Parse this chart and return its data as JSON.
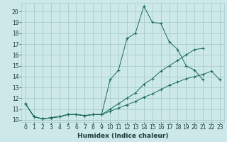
{
  "title": "",
  "xlabel": "Humidex (Indice chaleur)",
  "bg_color": "#cce8e8",
  "grid_color": "#aacccc",
  "line_color": "#1a6b5a",
  "xlim": [
    -0.5,
    23.5
  ],
  "ylim": [
    9.8,
    20.8
  ],
  "xticks": [
    0,
    1,
    2,
    3,
    4,
    5,
    6,
    7,
    8,
    9,
    10,
    11,
    12,
    13,
    14,
    15,
    16,
    17,
    18,
    19,
    20,
    21,
    22,
    23
  ],
  "yticks": [
    10,
    11,
    12,
    13,
    14,
    15,
    16,
    17,
    18,
    19,
    20
  ],
  "series": [
    {
      "x": [
        0,
        1,
        2,
        3,
        4,
        5,
        6,
        7,
        8,
        9,
        10,
        11,
        12,
        13,
        14,
        15,
        16,
        17,
        18,
        19,
        20,
        21
      ],
      "y": [
        11.5,
        10.3,
        10.1,
        10.2,
        10.3,
        10.5,
        10.5,
        10.4,
        10.5,
        10.5,
        13.7,
        14.6,
        17.5,
        18.0,
        20.5,
        19.0,
        18.9,
        17.2,
        16.5,
        15.0,
        14.6,
        13.7
      ]
    },
    {
      "x": [
        0,
        1,
        2,
        3,
        4,
        5,
        6,
        7,
        8,
        9,
        10,
        11,
        12,
        13,
        14,
        15,
        16,
        17,
        18,
        19,
        20,
        21
      ],
      "y": [
        11.5,
        10.3,
        10.1,
        10.2,
        10.3,
        10.5,
        10.5,
        10.4,
        10.5,
        10.5,
        11.0,
        11.5,
        12.0,
        12.5,
        13.3,
        13.8,
        14.5,
        15.0,
        15.5,
        16.0,
        16.5,
        16.6
      ]
    },
    {
      "x": [
        0,
        1,
        2,
        3,
        4,
        5,
        6,
        7,
        8,
        9,
        10,
        11,
        12,
        13,
        14,
        15,
        16,
        17,
        18,
        19,
        20,
        21,
        22,
        23
      ],
      "y": [
        11.5,
        10.3,
        10.1,
        10.2,
        10.3,
        10.5,
        10.5,
        10.4,
        10.5,
        10.5,
        10.8,
        11.1,
        11.4,
        11.7,
        12.1,
        12.4,
        12.8,
        13.2,
        13.5,
        13.8,
        14.0,
        14.2,
        14.5,
        13.7
      ]
    }
  ]
}
